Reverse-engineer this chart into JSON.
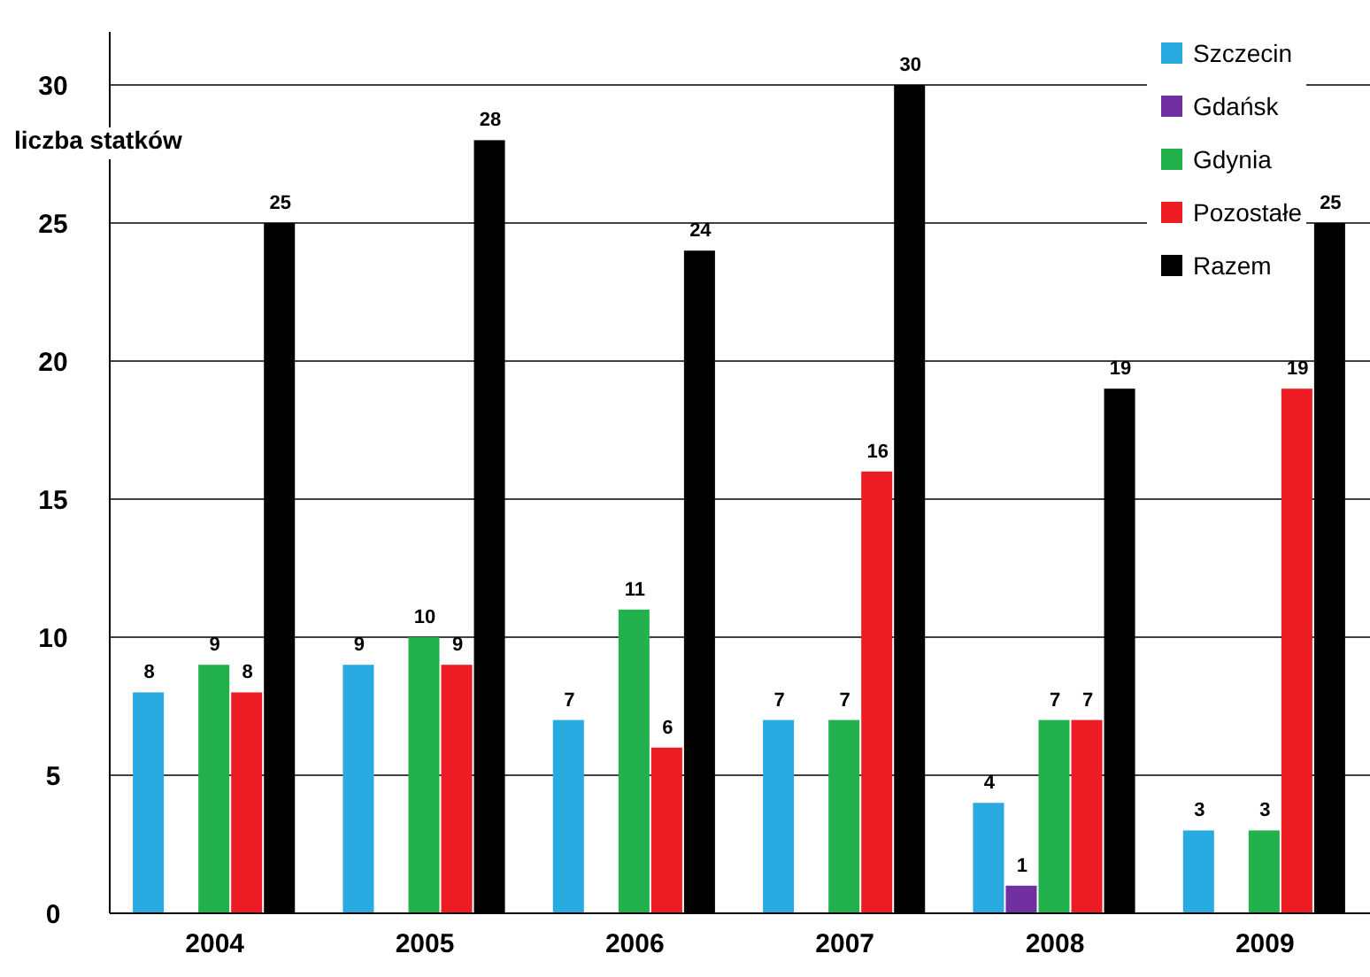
{
  "chart_data": {
    "type": "bar",
    "ylabel": "liczba statków",
    "categories": [
      "2004",
      "2005",
      "2006",
      "2007",
      "2008",
      "2009"
    ],
    "series": [
      {
        "name": "Szczecin",
        "color": "#29abe2",
        "values": [
          8,
          9,
          7,
          7,
          4,
          3
        ]
      },
      {
        "name": "Gdańsk",
        "color": "#7030a0",
        "values": [
          null,
          null,
          null,
          null,
          1,
          null
        ]
      },
      {
        "name": "Gdynia",
        "color": "#22b14c",
        "values": [
          9,
          10,
          11,
          7,
          7,
          3
        ]
      },
      {
        "name": "Pozostałe",
        "color": "#ed1c24",
        "values": [
          8,
          9,
          6,
          16,
          7,
          19
        ]
      },
      {
        "name": "Razem",
        "color": "#000000",
        "values": [
          25,
          28,
          24,
          30,
          19,
          25
        ]
      }
    ],
    "ylim": [
      0,
      30
    ],
    "yticks": [
      0,
      5,
      10,
      15,
      20,
      25,
      30
    ],
    "grid": "y",
    "legend": "top right",
    "data_labels": true
  }
}
